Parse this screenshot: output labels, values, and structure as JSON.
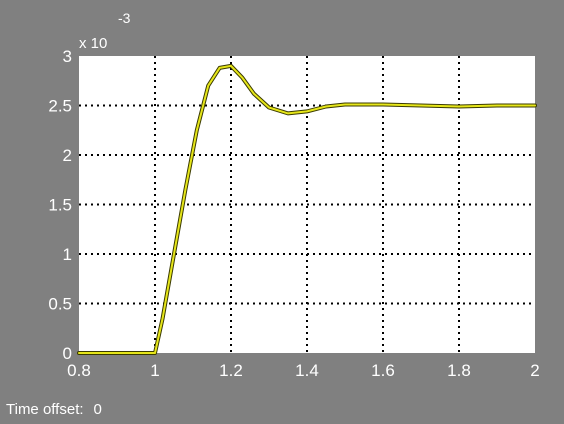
{
  "scope": {
    "time_offset_label": "Time offset:",
    "time_offset_value": "0",
    "exponent_base": "x 10",
    "exponent_power": "-3"
  },
  "colors": {
    "background": "#808080",
    "plot_area": "#ffffff",
    "grid": "#000000",
    "signal": "#e6e619",
    "signal_outline": "#3a3a00",
    "text": "#ffffff"
  },
  "chart_data": {
    "type": "line",
    "title": "",
    "xlabel": "",
    "ylabel": "",
    "xlim": [
      0.8,
      2.0
    ],
    "ylim": [
      0,
      3
    ],
    "y_scale_note": "x 10^-3",
    "grid": true,
    "x_ticks": [
      0.8,
      1,
      1.2,
      1.4,
      1.6,
      1.8,
      2
    ],
    "x_tick_labels": [
      "0.8",
      "1",
      "1.2",
      "1.4",
      "1.6",
      "1.8",
      "2"
    ],
    "y_ticks": [
      0,
      0.5,
      1,
      1.5,
      2,
      2.5,
      3
    ],
    "y_tick_labels": [
      "0",
      "0.5",
      "1",
      "1.5",
      "2",
      "2.5",
      "3"
    ],
    "series": [
      {
        "x": [
          0.8,
          1.0,
          1.02,
          1.05,
          1.08,
          1.11,
          1.14,
          1.17,
          1.2,
          1.23,
          1.26,
          1.3,
          1.35,
          1.4,
          1.45,
          1.5,
          1.6,
          1.7,
          1.8,
          1.9,
          2.0
        ],
        "y": [
          0,
          0,
          0.35,
          1.0,
          1.65,
          2.25,
          2.7,
          2.88,
          2.9,
          2.78,
          2.62,
          2.48,
          2.42,
          2.44,
          2.49,
          2.51,
          2.51,
          2.5,
          2.49,
          2.5,
          2.5
        ]
      }
    ]
  }
}
